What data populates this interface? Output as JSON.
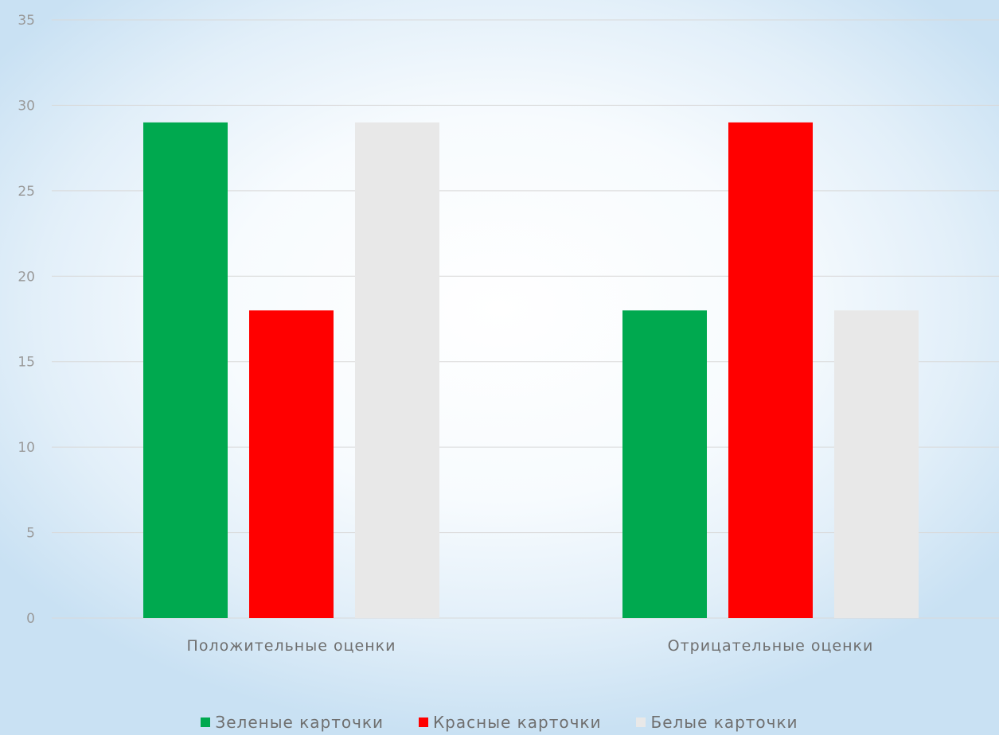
{
  "chart_data": {
    "type": "bar",
    "categories": [
      "Положительные оценки",
      "Отрицательные оценки"
    ],
    "series": [
      {
        "name": "Зеленые карточки",
        "values": [
          29,
          18
        ],
        "color": "#00a94f"
      },
      {
        "name": "Красные карточки",
        "values": [
          18,
          29
        ],
        "color": "#ff0000"
      },
      {
        "name": "Белые карточки",
        "values": [
          29,
          18
        ],
        "color": "#e8e8e8"
      }
    ],
    "yticks": [
      "0",
      "5",
      "10",
      "15",
      "20",
      "25",
      "30",
      "35"
    ],
    "ylim": [
      0,
      35
    ],
    "grid": true,
    "legend_position": "bottom"
  }
}
